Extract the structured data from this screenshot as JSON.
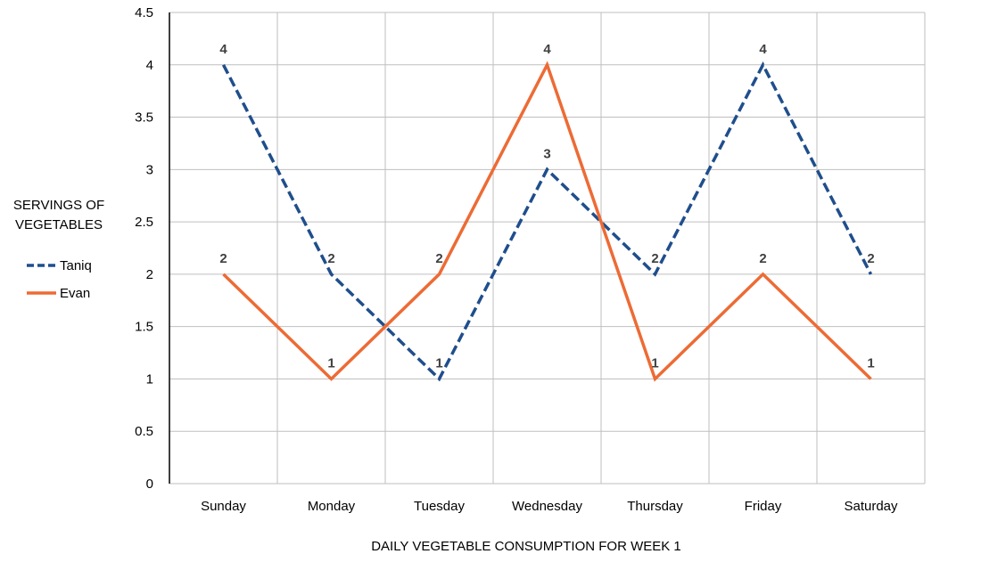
{
  "chart_data": {
    "type": "line",
    "title": "",
    "xlabel": "DAILY VEGETABLE CONSUMPTION FOR WEEK 1",
    "ylabel_lines": [
      "SERVINGS OF",
      "VEGETABLES"
    ],
    "categories": [
      "Sunday",
      "Monday",
      "Tuesday",
      "Wednesday",
      "Thursday",
      "Friday",
      "Saturday"
    ],
    "ylim": [
      0,
      4.5
    ],
    "yticks": [
      "0",
      "0.5",
      "1",
      "1.5",
      "2",
      "2.5",
      "3",
      "3.5",
      "4",
      "4.5"
    ],
    "grid": true,
    "legend_placement": "left",
    "series": [
      {
        "name": "Taniq",
        "values": [
          4,
          2,
          1,
          3,
          2,
          4,
          2
        ],
        "color": "#1F4E8C",
        "style": "dashed"
      },
      {
        "name": "Evan",
        "values": [
          2,
          1,
          2,
          4,
          1,
          2,
          1
        ],
        "color": "#ED6B35",
        "style": "solid"
      }
    ]
  }
}
